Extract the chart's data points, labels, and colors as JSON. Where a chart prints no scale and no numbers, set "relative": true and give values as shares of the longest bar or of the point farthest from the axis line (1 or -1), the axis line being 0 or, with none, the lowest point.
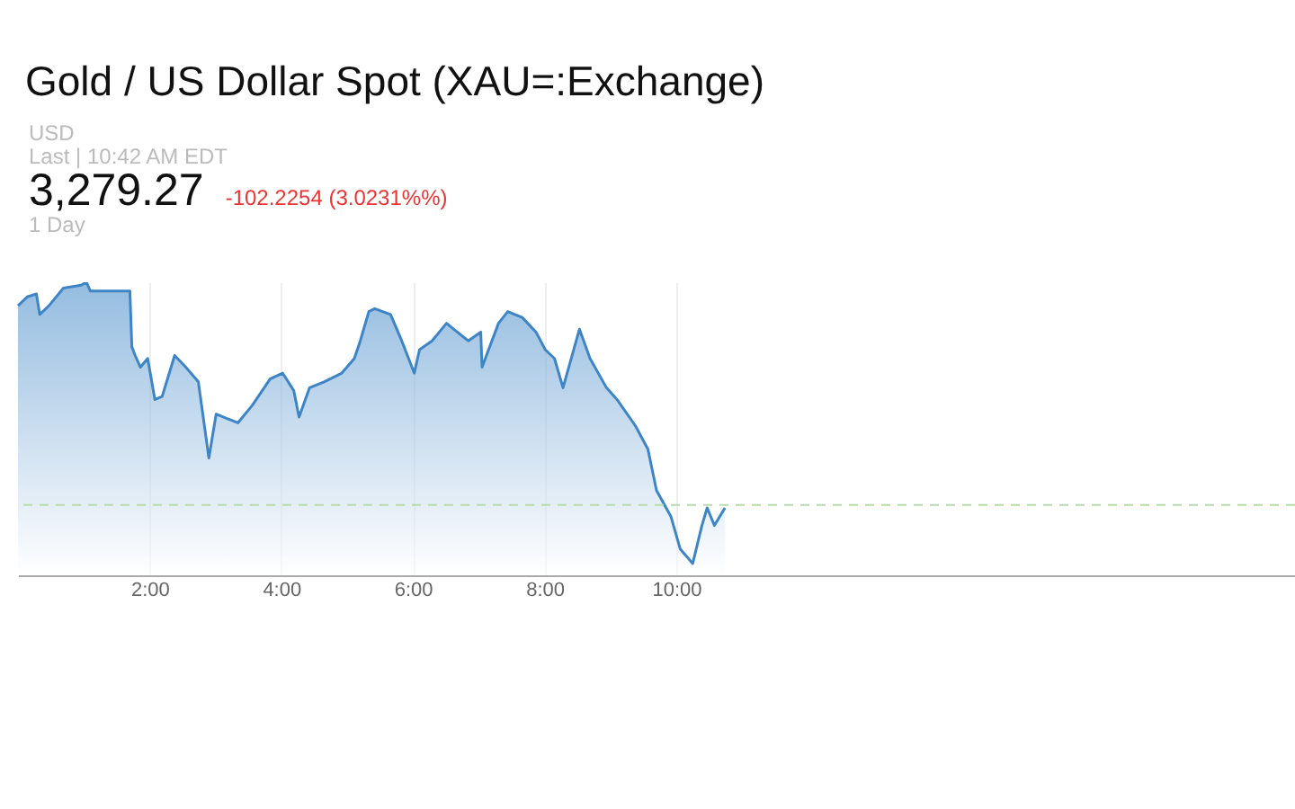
{
  "chart_data": {
    "type": "area",
    "title": "Gold / US Dollar Spot (XAU=:Exchange)",
    "annotations": [
      "USD",
      "Last | 10:42 AM EDT",
      "3,279.27",
      "-102.2254 (3.0231%%)",
      "1 Day"
    ],
    "relative": true,
    "x": [
      0.0,
      0.14,
      0.28,
      0.33,
      0.47,
      0.69,
      0.96,
      1.04,
      1.1,
      1.7,
      1.73,
      1.78,
      1.86,
      1.97,
      2.08,
      2.19,
      2.38,
      2.55,
      2.74,
      2.9,
      3.01,
      3.34,
      3.56,
      3.83,
      4.02,
      4.19,
      4.27,
      4.43,
      4.65,
      4.92,
      5.11,
      5.2,
      5.33,
      5.42,
      5.66,
      5.83,
      6.02,
      6.1,
      6.29,
      6.51,
      6.84,
      7.03,
      7.05,
      7.3,
      7.44,
      7.66,
      7.87,
      8.01,
      8.15,
      8.28,
      8.53,
      8.69,
      8.94,
      9.1,
      9.38,
      9.57,
      9.7,
      9.92,
      10.06,
      10.25,
      10.39,
      10.47,
      10.58,
      10.74
    ],
    "series": [
      {
        "color": "#3d85c6",
        "values": [
          0.92,
          0.95,
          0.96,
          0.89,
          0.92,
          0.98,
          0.99,
          1.0,
          0.97,
          0.97,
          0.78,
          0.75,
          0.71,
          0.74,
          0.6,
          0.61,
          0.75,
          0.71,
          0.66,
          0.4,
          0.55,
          0.52,
          0.58,
          0.67,
          0.69,
          0.63,
          0.54,
          0.64,
          0.66,
          0.69,
          0.74,
          0.8,
          0.9,
          0.91,
          0.89,
          0.8,
          0.69,
          0.77,
          0.8,
          0.86,
          0.8,
          0.83,
          0.71,
          0.86,
          0.9,
          0.88,
          0.83,
          0.77,
          0.74,
          0.64,
          0.84,
          0.74,
          0.64,
          0.6,
          0.51,
          0.43,
          0.29,
          0.2,
          0.09,
          0.04,
          0.17,
          0.23,
          0.17,
          0.23
        ]
      }
    ],
    "xlim": [
      0,
      19.4
    ],
    "xticks": [
      {
        "value": 2,
        "label": "2:00"
      },
      {
        "value": 4,
        "label": "4:00"
      },
      {
        "value": 6,
        "label": "6:00"
      },
      {
        "value": 8,
        "label": "8:00"
      },
      {
        "value": 10,
        "label": "10:00"
      }
    ],
    "ref_lines": [
      {
        "axis": "y",
        "value": 0.24,
        "color": "#b5dcaa",
        "line_style": "dashed"
      }
    ],
    "grid": "x",
    "line_style": "solid"
  }
}
